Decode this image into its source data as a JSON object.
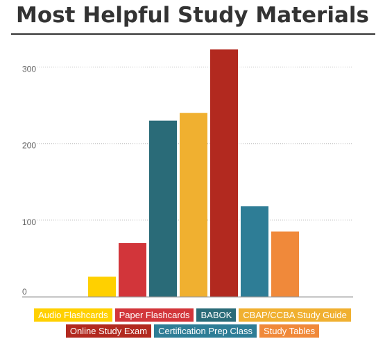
{
  "chart_data": {
    "type": "bar",
    "title": "Most Helpful Study Materials",
    "xlabel": "",
    "ylabel": "",
    "ylim": [
      0,
      340
    ],
    "yticks": [
      0,
      100,
      200,
      300
    ],
    "grid": true,
    "legend_position": "bottom",
    "categories": [
      "Audio Flashcards",
      "Paper Flashcards",
      "BABOK",
      "CBAP/CCBA Study Guide",
      "Online Study Exam",
      "Certification Prep Class",
      "Study Tables"
    ],
    "values": [
      26,
      70,
      230,
      240,
      323,
      118,
      85
    ],
    "colors": [
      "#ffd000",
      "#d2353a",
      "#2a6b78",
      "#f0b030",
      "#b2291f",
      "#2e7d96",
      "#f0893a"
    ]
  },
  "legend_rows": [
    [
      0,
      1,
      2,
      3
    ],
    [
      4,
      5,
      6
    ]
  ]
}
